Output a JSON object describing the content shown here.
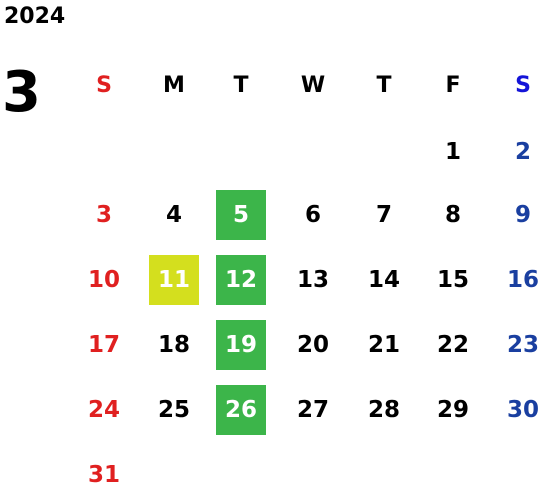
{
  "year": "2024",
  "month": "3",
  "colors": {
    "sunday": "#e02020",
    "saturday": "#1a3fa0",
    "saturday_header": "#1414d8",
    "weekday": "#000000",
    "highlight_green": "#3cb54a",
    "highlight_yellow": "#d4df1e",
    "highlight_text": "#ffffff"
  },
  "weekday_headers": [
    "S",
    "M",
    "T",
    "W",
    "T",
    "F",
    "S"
  ],
  "weeks": [
    [
      {
        "day": "",
        "highlight": ""
      },
      {
        "day": "",
        "highlight": ""
      },
      {
        "day": "",
        "highlight": ""
      },
      {
        "day": "",
        "highlight": ""
      },
      {
        "day": "",
        "highlight": ""
      },
      {
        "day": "1",
        "highlight": ""
      },
      {
        "day": "2",
        "highlight": ""
      }
    ],
    [
      {
        "day": "3",
        "highlight": ""
      },
      {
        "day": "4",
        "highlight": ""
      },
      {
        "day": "5",
        "highlight": "green"
      },
      {
        "day": "6",
        "highlight": ""
      },
      {
        "day": "7",
        "highlight": ""
      },
      {
        "day": "8",
        "highlight": ""
      },
      {
        "day": "9",
        "highlight": ""
      }
    ],
    [
      {
        "day": "10",
        "highlight": ""
      },
      {
        "day": "11",
        "highlight": "yellow"
      },
      {
        "day": "12",
        "highlight": "green"
      },
      {
        "day": "13",
        "highlight": ""
      },
      {
        "day": "14",
        "highlight": ""
      },
      {
        "day": "15",
        "highlight": ""
      },
      {
        "day": "16",
        "highlight": ""
      }
    ],
    [
      {
        "day": "17",
        "highlight": ""
      },
      {
        "day": "18",
        "highlight": ""
      },
      {
        "day": "19",
        "highlight": "green"
      },
      {
        "day": "20",
        "highlight": ""
      },
      {
        "day": "21",
        "highlight": ""
      },
      {
        "day": "22",
        "highlight": ""
      },
      {
        "day": "23",
        "highlight": ""
      }
    ],
    [
      {
        "day": "24",
        "highlight": ""
      },
      {
        "day": "25",
        "highlight": ""
      },
      {
        "day": "26",
        "highlight": "green"
      },
      {
        "day": "27",
        "highlight": ""
      },
      {
        "day": "28",
        "highlight": ""
      },
      {
        "day": "29",
        "highlight": ""
      },
      {
        "day": "30",
        "highlight": ""
      }
    ],
    [
      {
        "day": "31",
        "highlight": ""
      },
      {
        "day": "",
        "highlight": ""
      },
      {
        "day": "",
        "highlight": ""
      },
      {
        "day": "",
        "highlight": ""
      },
      {
        "day": "",
        "highlight": ""
      },
      {
        "day": "",
        "highlight": ""
      },
      {
        "day": "",
        "highlight": ""
      }
    ]
  ]
}
